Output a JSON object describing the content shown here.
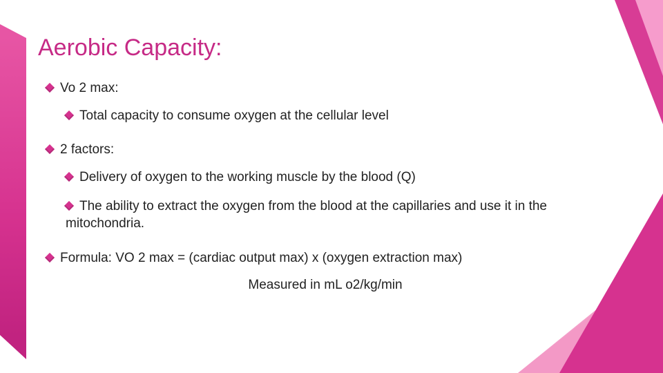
{
  "theme": {
    "accent": "#d6328f",
    "accent_light": "#f18ec0",
    "accent_lighter": "#f9c9e2",
    "title_color": "#c62a86",
    "text_color": "#222222",
    "background": "#ffffff"
  },
  "slide": {
    "title": "Aerobic Capacity:",
    "bullets": [
      {
        "text": "Vo 2 max:",
        "children": [
          {
            "text": "Total capacity to consume oxygen at the cellular level"
          }
        ]
      },
      {
        "text": "2 factors:",
        "children": [
          {
            "text": "Delivery of oxygen to the working muscle by the blood (Q)"
          },
          {
            "text": "The ability to extract the oxygen from the blood at the capillaries and use it in the mitochondria."
          }
        ]
      },
      {
        "text": "Formula:  VO 2 max = (cardiac output max) x (oxygen extraction max)",
        "sub": "Measured in mL o2/kg/min"
      }
    ]
  }
}
